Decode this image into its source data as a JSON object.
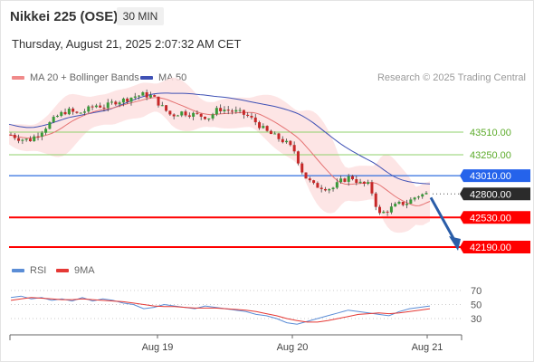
{
  "header": {
    "title": "Nikkei 225 (OSE)",
    "interval_label": "30 MIN",
    "datetime": "Thursday, August 21, 2025 2:07:32 AM CET"
  },
  "legend": {
    "ma20_label": "MA 20 + Bollinger Bands",
    "ma50_label": "MA 50",
    "copyright": "Research © 2025 Trading Central",
    "rsi_label": "RSI",
    "rsi_ma_label": "9MA"
  },
  "colors": {
    "up": "#3a9a3a",
    "down": "#c62828",
    "ma20": "#e57373",
    "bollinger_fill": "#fde0e0",
    "ma50": "#3f51b5",
    "level_green": "#8fd16b",
    "level_blue": "#2f6fdf",
    "level_red": "#ff0000",
    "arrow": "#2a5da8",
    "rsi": "#5b8dd6",
    "rsi_ma": "#e53935"
  },
  "chart_data": {
    "type": "candlestick",
    "x_ticks": [
      "Aug 19",
      "Aug 20",
      "Aug 21"
    ],
    "price_axis_visible": false,
    "levels": [
      {
        "value": 43510.0,
        "label": "43510.00",
        "style": "resistance"
      },
      {
        "value": 43250.0,
        "label": "43250.00",
        "style": "resistance"
      },
      {
        "value": 43010.0,
        "label": "43010.00",
        "style": "pivot"
      },
      {
        "value": 42800.0,
        "label": "42800.00",
        "style": "current"
      },
      {
        "value": 42530.0,
        "label": "42530.00",
        "style": "support"
      },
      {
        "value": 42190.0,
        "label": "42190.00",
        "style": "support"
      }
    ],
    "forecast_arrow": {
      "from": 42800,
      "to": 42190,
      "direction": "down"
    },
    "close_path": [
      43480,
      43430,
      43420,
      43500,
      43600,
      43700,
      43760,
      43720,
      43760,
      43820,
      43800,
      43860,
      43880,
      43920,
      43940,
      43920,
      43800,
      43700,
      43740,
      43720,
      43700,
      43680,
      43780,
      43760,
      43740,
      43700,
      43620,
      43520,
      43460,
      43400,
      43300,
      43020,
      42900,
      42880,
      42860,
      42950,
      43000,
      42920,
      42900,
      42560,
      42620,
      42680,
      42700,
      42780,
      42800
    ],
    "rsi": {
      "ticks": [
        70,
        50,
        30
      ],
      "ylim": [
        15,
        85
      ],
      "rsi_path": [
        60,
        62,
        58,
        60,
        56,
        58,
        55,
        60,
        55,
        58,
        56,
        52,
        50,
        44,
        46,
        50,
        48,
        46,
        44,
        48,
        46,
        44,
        42,
        40,
        36,
        34,
        30,
        24,
        22,
        26,
        30,
        34,
        38,
        42,
        40,
        38,
        36,
        34,
        40,
        44,
        46,
        48
      ],
      "ma_path": [
        56,
        58,
        60,
        59,
        58,
        57,
        57,
        58,
        57,
        56,
        55,
        54,
        52,
        50,
        48,
        47,
        47,
        46,
        45,
        45,
        45,
        44,
        43,
        42,
        40,
        37,
        34,
        30,
        27,
        25,
        25,
        27,
        30,
        33,
        36,
        37,
        38,
        37,
        38,
        40,
        42,
        44
      ]
    }
  }
}
